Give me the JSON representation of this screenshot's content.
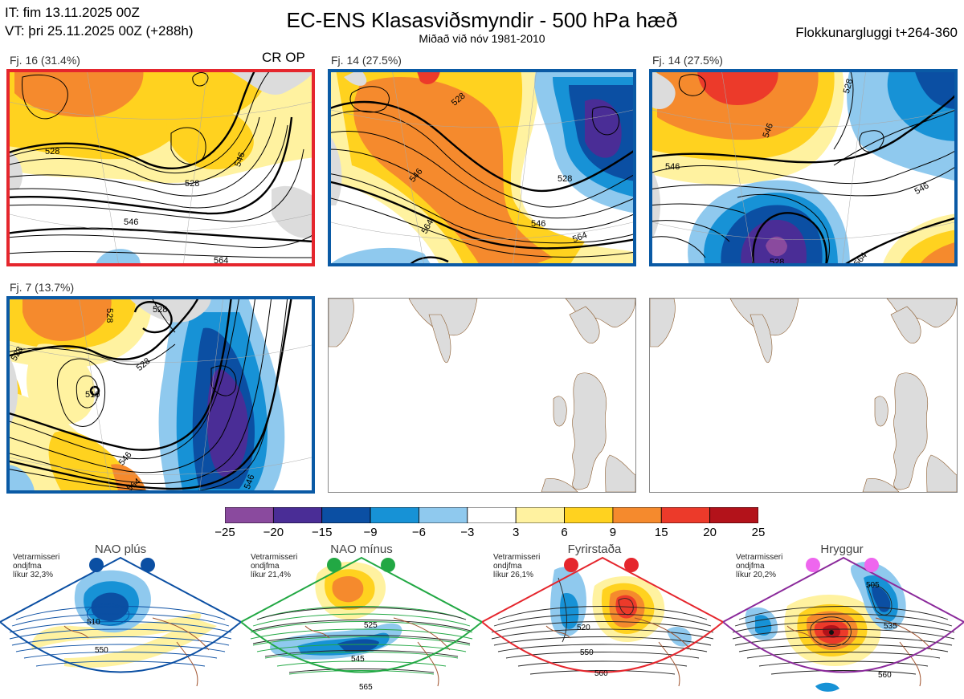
{
  "header": {
    "it_line": "IT: fim 13.11.2025 00Z",
    "vt_line": "VT: þri 25.11.2025 00Z  (+288h)",
    "title": "EC-ENS Klasasviðsmyndir - 500 hPa hæð",
    "subtitle": "Miðað við nóv 1981-2010",
    "window": "Flokkunargluggi t+264-360"
  },
  "colors": {
    "red_frame": "#e5262d",
    "blue_frame": "#0a5aa5",
    "land": "#dcdcdc",
    "coast": "#8b5a2b"
  },
  "op_label": "CR OP",
  "panels": [
    {
      "label": "Fj. 16 (31.4%)",
      "frame": "red",
      "contour_labels": [
        "528",
        "528",
        "546",
        "546",
        "564"
      ]
    },
    {
      "label": "Fj. 14 (27.5%)",
      "frame": "blue",
      "contour_labels": [
        "528",
        "528",
        "546",
        "546",
        "564",
        "564"
      ]
    },
    {
      "label": "Fj. 14 (27.5%)",
      "frame": "blue",
      "contour_labels": [
        "528",
        "546",
        "546",
        "546",
        "528",
        "564"
      ]
    },
    {
      "label": "Fj. 7 (13.7%)",
      "frame": "blue",
      "contour_labels": [
        "528",
        "528",
        "528",
        "510",
        "528",
        "546",
        "564",
        "546"
      ]
    }
  ],
  "colorbar": {
    "ticks": [
      "−25",
      "−20",
      "−15",
      "−9",
      "−6",
      "−3",
      "3",
      "6",
      "9",
      "15",
      "20",
      "25"
    ],
    "colors": [
      "#8a4a9e",
      "#4a2d96",
      "#0b4fa3",
      "#1792d6",
      "#8fc9ee",
      "#ffffff",
      "#fff2a0",
      "#ffd21f",
      "#f58a2d",
      "#ec3a2a",
      "#b3121a"
    ]
  },
  "regimes": [
    {
      "name": "NAO plús",
      "stat": [
        "Vetrarmisseri",
        "ondjfma",
        "líkur 32,3%"
      ],
      "color": "#0b4fa3",
      "labels": [
        "510",
        "550"
      ]
    },
    {
      "name": "NAO mínus",
      "stat": [
        "Vetrarmisseri",
        "ondjfma",
        "líkur 21,4%"
      ],
      "color": "#22a844",
      "labels": [
        "525",
        "545",
        "565"
      ]
    },
    {
      "name": "Fyrirstaða",
      "stat": [
        "Vetrarmisseri",
        "ondjfma",
        "líkur 26,1%"
      ],
      "color": "#e5262d",
      "labels": [
        "520",
        "550",
        "560"
      ]
    },
    {
      "name": "Hryggur",
      "stat": [
        "Vetrarmisseri",
        "ondjfma",
        "líkur 20,2%"
      ],
      "color": "#ee66ee",
      "labels": [
        "505",
        "535",
        "560"
      ]
    }
  ]
}
